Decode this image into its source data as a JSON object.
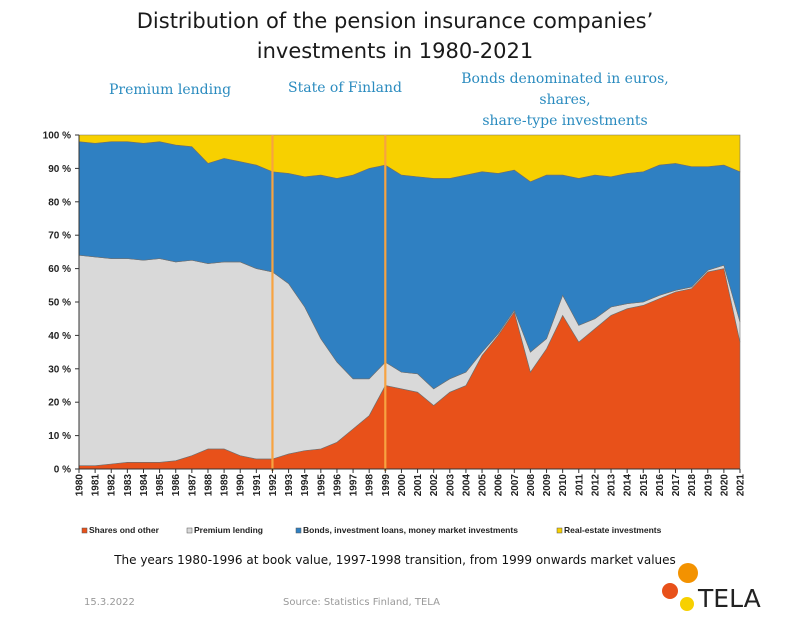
{
  "chart_data": {
    "type": "area",
    "stacked": true,
    "percent": true,
    "title": "Distribution of the pension insurance companies’ investments in 1980-2021",
    "title_lines": [
      "Distribution of the pension insurance companies’",
      "investments in 1980-2021"
    ],
    "x": [
      "1980",
      "1981",
      "1982",
      "1983",
      "1984",
      "1985",
      "1986",
      "1987",
      "1988",
      "1989",
      "1990",
      "1991",
      "1992",
      "1993",
      "1994",
      "1995",
      "1996",
      "1997",
      "1998",
      "1999",
      "2000",
      "2001",
      "2002",
      "2003",
      "2004",
      "2005",
      "2006",
      "2007",
      "2008",
      "2009",
      "2010",
      "2011",
      "2012",
      "2013",
      "2014",
      "2015",
      "2016",
      "2017",
      "2018",
      "2019",
      "2020",
      "2021"
    ],
    "ylim": [
      0,
      100
    ],
    "yticks": [
      0,
      10,
      20,
      30,
      40,
      50,
      60,
      70,
      80,
      90,
      100
    ],
    "ytick_labels": [
      "0 %",
      "10 %",
      "20 %",
      "30 %",
      "40 %",
      "50 %",
      "60 %",
      "70 %",
      "80 %",
      "90 %",
      "100 %"
    ],
    "series": [
      {
        "name": "Shares ond other",
        "color": "#e8511a",
        "values": [
          1,
          1,
          1.5,
          2,
          2,
          2,
          2.5,
          4,
          6,
          6,
          4,
          3,
          3,
          4.5,
          5.5,
          6,
          8,
          12,
          16,
          25,
          24,
          23,
          19,
          23,
          25,
          34,
          40,
          47,
          29,
          36,
          46,
          38,
          42,
          46,
          48,
          49,
          51,
          53,
          54,
          59,
          60,
          38
        ]
      },
      {
        "name": "Premium lending",
        "color": "#d9d9d9",
        "values": [
          63,
          62.5,
          61.5,
          61,
          60.5,
          61,
          59.5,
          58.5,
          55.5,
          56,
          58,
          57,
          56,
          51,
          43,
          33,
          24,
          15,
          11,
          7,
          5,
          5.5,
          5,
          4,
          4,
          1,
          0.5,
          0.5,
          6,
          3,
          6,
          5,
          3,
          2.5,
          1.5,
          1,
          1,
          0.5,
          0.5,
          0.5,
          1,
          6
        ]
      },
      {
        "name": "Bonds, investment loans, money market investments",
        "color": "#2f80c2",
        "values": [
          34,
          34,
          35,
          35,
          35,
          35,
          35,
          34,
          30,
          31,
          30,
          31,
          30,
          33,
          39,
          49,
          55,
          61,
          63,
          59,
          59,
          59,
          63,
          60,
          59,
          54,
          48,
          42,
          51,
          49,
          36,
          44,
          43,
          39,
          39,
          39,
          39,
          38,
          36,
          31,
          30,
          45
        ]
      },
      {
        "name": "Real-estate investments",
        "color": "#f7d000",
        "values": [
          2,
          2.5,
          2,
          2,
          2.5,
          2,
          3,
          3.5,
          8.5,
          7,
          8,
          9,
          11,
          11.5,
          12.5,
          12,
          13,
          12,
          10,
          9,
          12,
          12.5,
          13,
          13,
          12,
          11,
          11.5,
          10.5,
          14,
          12,
          12,
          13,
          12,
          12.5,
          11.5,
          11,
          9,
          8.5,
          9.5,
          9.5,
          9,
          11
        ]
      }
    ],
    "period_labels": [
      "Premium lending",
      "State of Finland",
      "Bonds denominated in euros, shares,",
      "share-type investments"
    ],
    "divider_years": [
      "1992",
      "1999"
    ],
    "divider_color": "#f7a341",
    "grid": false,
    "legend_position": "bottom"
  },
  "note": "The years 1980-1996 at book value, 1997-1998 transition, from 1999 onwards market values",
  "footer": {
    "date": "15.3.2022",
    "source": "Source: Statistics Finland, TELA",
    "logo_text": "TELA",
    "logo_colors": [
      "#f39200",
      "#e8511a",
      "#f7d000"
    ]
  }
}
